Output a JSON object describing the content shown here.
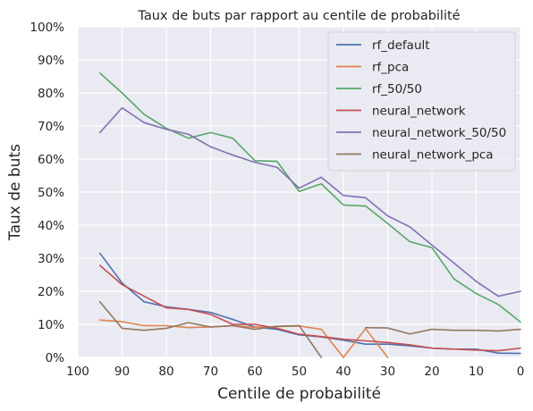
{
  "chart_data": {
    "type": "line",
    "title": "Taux de buts par rapport au centile de probabilité",
    "xlabel": "Centile de probabilité",
    "ylabel": "Taux de buts",
    "xlim": [
      100,
      0
    ],
    "ylim": [
      0,
      1
    ],
    "x_reversed": true,
    "xticks": [
      100,
      90,
      80,
      70,
      60,
      50,
      40,
      30,
      20,
      10,
      0
    ],
    "xtick_labels": [
      "100",
      "90",
      "80",
      "70",
      "60",
      "50",
      "40",
      "30",
      "20",
      "10",
      "0"
    ],
    "yticks": [
      0,
      0.1,
      0.2,
      0.3,
      0.4,
      0.5,
      0.6,
      0.7,
      0.8,
      0.9,
      1.0
    ],
    "ytick_labels": [
      "0%",
      "10%",
      "20%",
      "30%",
      "40%",
      "50%",
      "60%",
      "70%",
      "80%",
      "90%",
      "100%"
    ],
    "grid": true,
    "background": "#eaeaf2",
    "legend_position": "top-right",
    "series": [
      {
        "name": "rf_default",
        "color": "#4c72b0",
        "x": [
          95,
          90,
          85,
          80,
          75,
          70,
          65,
          60,
          55,
          50,
          45,
          40,
          35,
          30,
          25,
          20,
          15,
          10,
          5,
          0
        ],
        "y": [
          0.315,
          0.225,
          0.168,
          0.153,
          0.145,
          0.136,
          0.115,
          0.092,
          0.085,
          0.068,
          0.062,
          0.052,
          0.04,
          0.04,
          0.035,
          0.028,
          0.025,
          0.025,
          0.013,
          0.012
        ]
      },
      {
        "name": "rf_pca",
        "color": "#dd8452",
        "x": [
          95,
          90,
          85,
          80,
          75,
          70,
          65,
          60,
          55,
          50,
          45,
          40,
          35,
          30
        ],
        "y": [
          0.113,
          0.108,
          0.096,
          0.096,
          0.09,
          0.092,
          0.096,
          0.091,
          0.093,
          0.095,
          0.085,
          0.0,
          0.087,
          0.0
        ]
      },
      {
        "name": "rf_50/50",
        "color": "#55a868",
        "x": [
          95,
          90,
          85,
          80,
          75,
          70,
          65,
          60,
          55,
          50,
          45,
          40,
          35,
          30,
          25,
          20,
          15,
          10,
          5,
          0
        ],
        "y": [
          0.86,
          0.8,
          0.735,
          0.693,
          0.663,
          0.68,
          0.663,
          0.595,
          0.593,
          0.502,
          0.525,
          0.461,
          0.458,
          0.405,
          0.35,
          0.332,
          0.237,
          0.193,
          0.16,
          0.107
        ]
      },
      {
        "name": "neural_network",
        "color": "#c44e52",
        "x": [
          95,
          90,
          85,
          80,
          75,
          70,
          65,
          60,
          55,
          50,
          45,
          40,
          35,
          30,
          25,
          20,
          15,
          10,
          5,
          0
        ],
        "y": [
          0.278,
          0.22,
          0.185,
          0.15,
          0.145,
          0.13,
          0.1,
          0.1,
          0.088,
          0.07,
          0.063,
          0.055,
          0.05,
          0.045,
          0.038,
          0.028,
          0.025,
          0.022,
          0.02,
          0.028
        ]
      },
      {
        "name": "neural_network_50/50",
        "color": "#8172b3",
        "x": [
          95,
          90,
          85,
          80,
          75,
          70,
          65,
          60,
          55,
          50,
          45,
          40,
          35,
          30,
          25,
          20,
          15,
          10,
          5,
          0
        ],
        "y": [
          0.68,
          0.755,
          0.71,
          0.69,
          0.675,
          0.637,
          0.612,
          0.59,
          0.575,
          0.512,
          0.545,
          0.49,
          0.483,
          0.428,
          0.395,
          0.34,
          0.285,
          0.23,
          0.185,
          0.2
        ]
      },
      {
        "name": "neural_network_pca",
        "color": "#937860",
        "x": [
          95,
          90,
          85,
          80,
          75,
          70,
          65,
          60,
          55,
          50,
          45,
          40,
          35,
          30,
          25,
          20,
          15,
          10,
          5,
          0
        ],
        "y": [
          0.168,
          0.088,
          0.082,
          0.088,
          0.105,
          0.092,
          0.096,
          0.085,
          0.094,
          0.096,
          0.0,
          null,
          0.09,
          0.089,
          0.071,
          0.085,
          0.082,
          0.082,
          0.08,
          0.085
        ]
      }
    ]
  }
}
